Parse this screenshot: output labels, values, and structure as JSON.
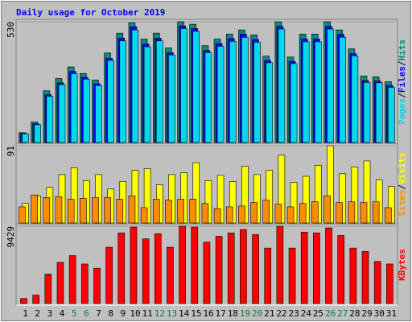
{
  "chart_data": {
    "type": "bar",
    "title": "Daily usage for October 2019",
    "title_color": "#0000ff",
    "categories": [
      "1",
      "2",
      "3",
      "4",
      "5",
      "6",
      "7",
      "8",
      "9",
      "10",
      "11",
      "12",
      "13",
      "14",
      "15",
      "16",
      "17",
      "18",
      "19",
      "20",
      "21",
      "22",
      "23",
      "24",
      "25",
      "26",
      "27",
      "28",
      "29",
      "30",
      "31"
    ],
    "category_label_colors": [
      "#000000",
      "#000000",
      "#000000",
      "#000000",
      "#008040",
      "#008040",
      "#000000",
      "#000000",
      "#000000",
      "#000000",
      "#000000",
      "#008040",
      "#008040",
      "#000000",
      "#000000",
      "#000000",
      "#000000",
      "#000000",
      "#008040",
      "#008040",
      "#000000",
      "#000000",
      "#000000",
      "#000000",
      "#000000",
      "#008040",
      "#008040",
      "#000000",
      "#000000",
      "#000000",
      "#000000"
    ],
    "legend_separator": "/",
    "panels": [
      {
        "ylim": [
          0,
          530
        ],
        "yticks": [
          530
        ],
        "series": [
          {
            "name": "Hits",
            "color": "#008c7a",
            "values": [
              43,
              90,
              227,
              281,
              332,
              303,
              274,
              393,
              480,
              526,
              454,
              480,
              415,
              530,
              519,
              425,
              454,
              476,
              494,
              472,
              379,
              530,
              375,
              476,
              476,
              530,
              494,
              411,
              292,
              288,
              267
            ]
          },
          {
            "name": "Files",
            "color": "#0000ff",
            "values": [
              40,
              82,
              210,
              262,
              312,
              286,
              258,
              370,
              458,
              508,
              432,
              458,
              394,
              512,
              500,
              404,
              434,
              456,
              476,
              452,
              360,
              510,
              356,
              454,
              454,
              510,
              474,
              390,
              272,
              270,
              250
            ]
          },
          {
            "name": "Pages",
            "color": "#00d8f0",
            "values": [
              38,
              78,
              202,
              254,
              302,
              278,
              250,
              360,
              446,
              494,
              420,
              446,
              384,
              500,
              488,
              394,
              422,
              444,
              462,
              440,
              350,
              498,
              346,
              442,
              442,
              498,
              462,
              380,
              264,
              262,
              242
            ]
          }
        ]
      },
      {
        "ylim": [
          0,
          91
        ],
        "yticks": [
          91
        ],
        "series": [
          {
            "name": "Visits",
            "color": "#ffff00",
            "values": [
              23,
              32,
              42,
              57,
              65,
              50,
              57,
              40,
              49,
              62,
              64,
              45,
              57,
              59,
              71,
              50,
              56,
              49,
              67,
              57,
              62,
              80,
              48,
              55,
              68,
              91,
              58,
              66,
              73,
              51,
              43
            ]
          },
          {
            "name": "Sites",
            "color": "#ff8c00",
            "values": [
              19,
              33,
              30,
              31,
              28,
              29,
              30,
              30,
              28,
              32,
              18,
              28,
              27,
              28,
              28,
              23,
              17,
              19,
              20,
              24,
              27,
              22,
              19,
              23,
              25,
              32,
              24,
              25,
              24,
              25,
              18
            ]
          }
        ]
      },
      {
        "ylim": [
          0,
          9429
        ],
        "yticks": [
          9429
        ],
        "series": [
          {
            "name": "KBytes",
            "color": "#ff0000",
            "values": [
              615,
              1025,
              3587,
              5022,
              5842,
              4817,
              4305,
              6867,
              8610,
              9327,
              7892,
              8507,
              6867,
              9429,
              9327,
              7482,
              8200,
              8610,
              9020,
              8405,
              6765,
              9429,
              6765,
              8712,
              8610,
              9225,
              8302,
              6765,
              6355,
              5125,
              4817
            ]
          }
        ]
      }
    ]
  }
}
